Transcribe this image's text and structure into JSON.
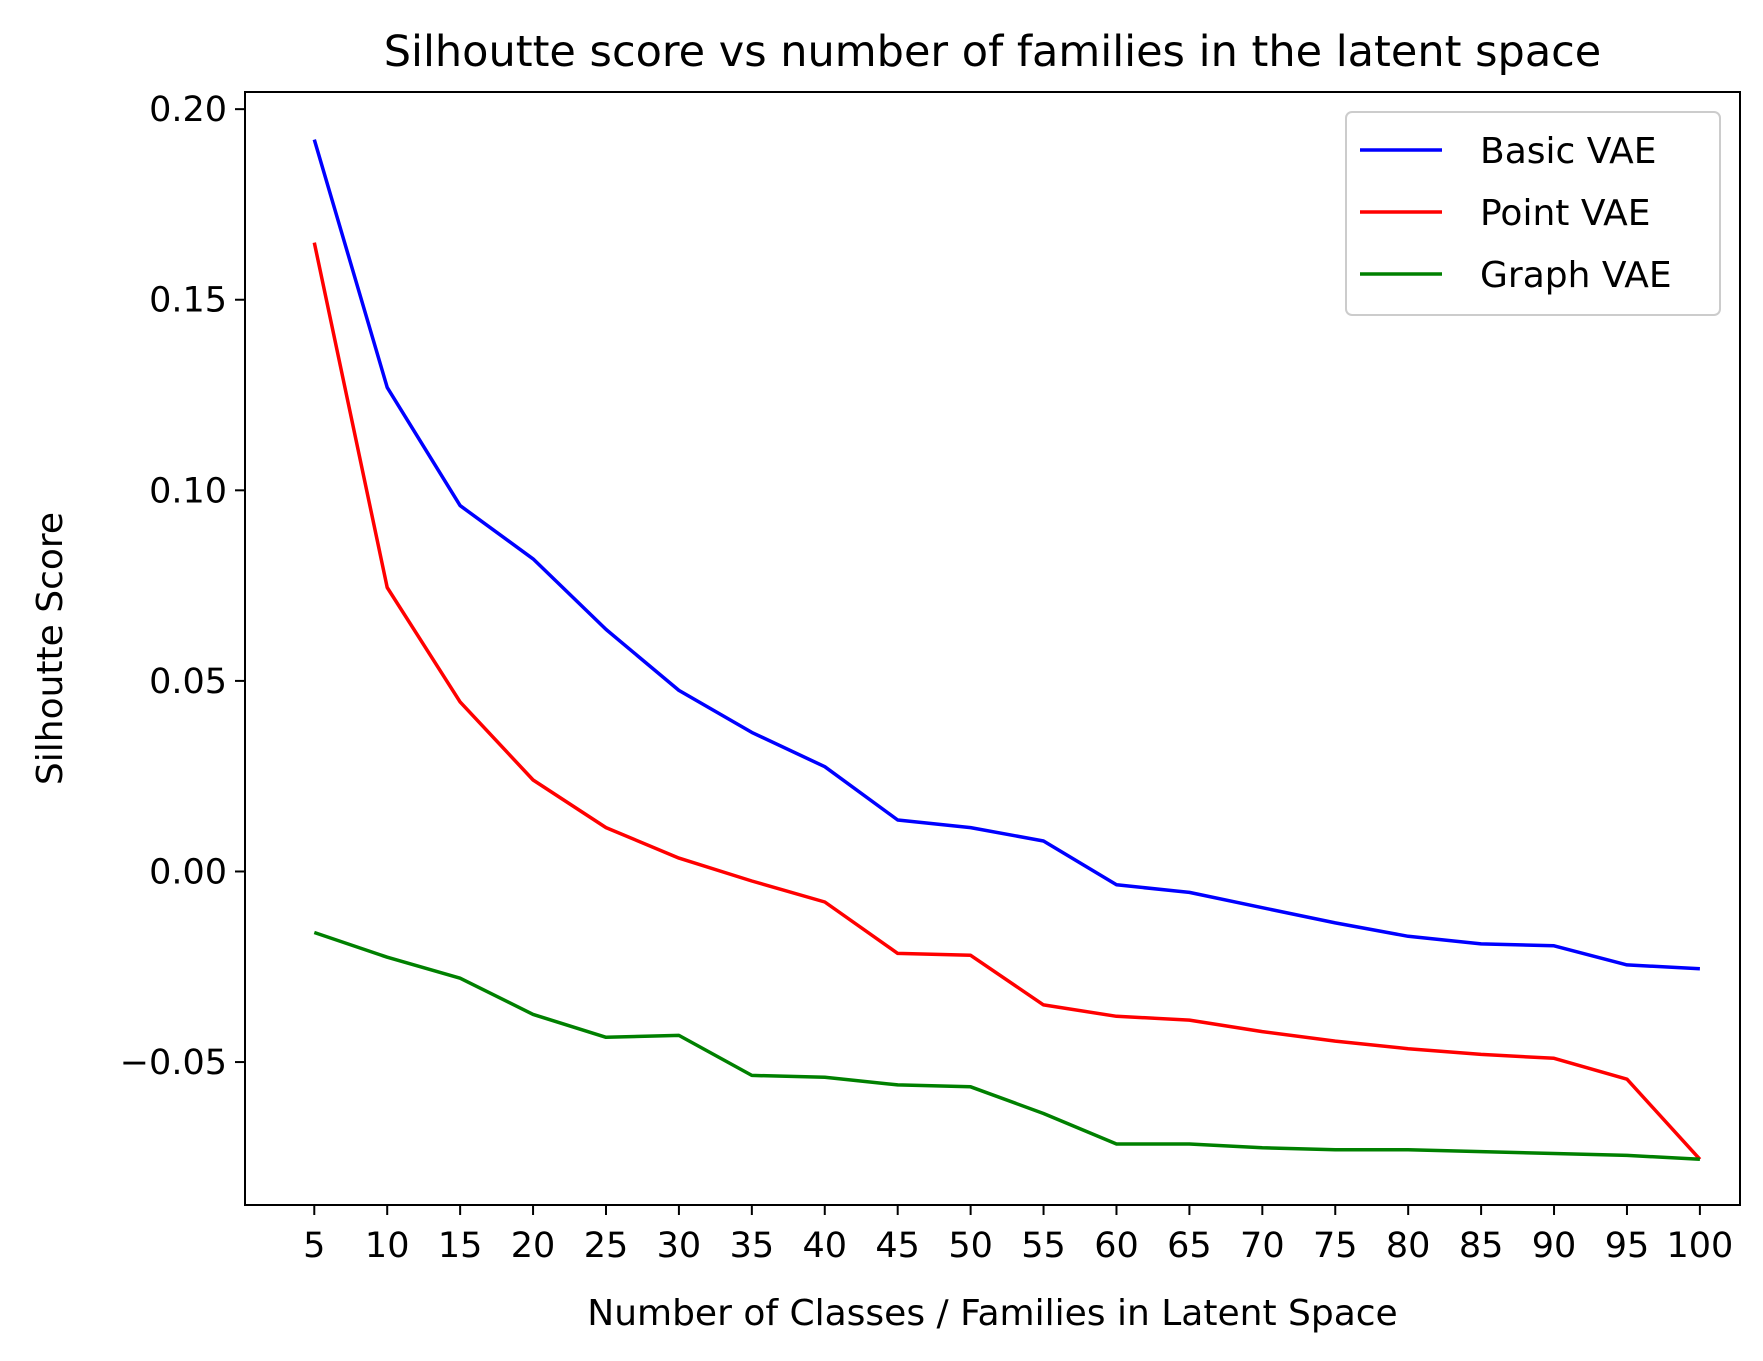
{
  "chart_data": {
    "type": "line",
    "title": "Silhoutte score vs number of families in the latent space",
    "xlabel": "Number of Classes / Families in Latent Space",
    "ylabel": "Silhoutte Score",
    "x": [
      5,
      10,
      15,
      20,
      25,
      30,
      35,
      40,
      45,
      50,
      55,
      60,
      65,
      70,
      75,
      80,
      85,
      90,
      95,
      100
    ],
    "xticks": [
      "5",
      "10",
      "15",
      "20",
      "25",
      "30",
      "35",
      "40",
      "45",
      "50",
      "55",
      "60",
      "65",
      "70",
      "75",
      "80",
      "85",
      "90",
      "95",
      "100"
    ],
    "yticks": [
      {
        "value": 0.2,
        "label": "0.20"
      },
      {
        "value": 0.15,
        "label": "0.15"
      },
      {
        "value": 0.1,
        "label": "0.10"
      },
      {
        "value": 0.05,
        "label": "0.05"
      },
      {
        "value": 0.0,
        "label": "0.00"
      },
      {
        "value": -0.05,
        "label": "−0.05"
      }
    ],
    "xlim": [
      0.25,
      102.75
    ],
    "ylim": [
      -0.0875,
      0.2045
    ],
    "grid": false,
    "legend_position": "top-right",
    "series": [
      {
        "name": "Basic VAE",
        "color": "#0000ff",
        "values": [
          0.192,
          0.127,
          0.096,
          0.082,
          0.0635,
          0.0475,
          0.0365,
          0.0275,
          0.0135,
          0.0115,
          0.008,
          -0.0035,
          -0.0055,
          -0.0095,
          -0.0135,
          -0.017,
          -0.019,
          -0.0195,
          -0.0245,
          -0.0255
        ]
      },
      {
        "name": "Point VAE",
        "color": "#ff0000",
        "values": [
          0.165,
          0.0745,
          0.0445,
          0.024,
          0.0115,
          0.0035,
          -0.0025,
          -0.008,
          -0.0215,
          -0.022,
          -0.035,
          -0.038,
          -0.039,
          -0.042,
          -0.0445,
          -0.0465,
          -0.048,
          -0.049,
          -0.0545,
          -0.0755
        ]
      },
      {
        "name": "Graph VAE",
        "color": "#008000",
        "values": [
          -0.016,
          -0.0225,
          -0.028,
          -0.0375,
          -0.0435,
          -0.043,
          -0.0535,
          -0.054,
          -0.056,
          -0.0565,
          -0.0635,
          -0.0715,
          -0.0715,
          -0.0725,
          -0.073,
          -0.073,
          -0.0735,
          -0.074,
          -0.0745,
          -0.0755
        ]
      }
    ]
  }
}
